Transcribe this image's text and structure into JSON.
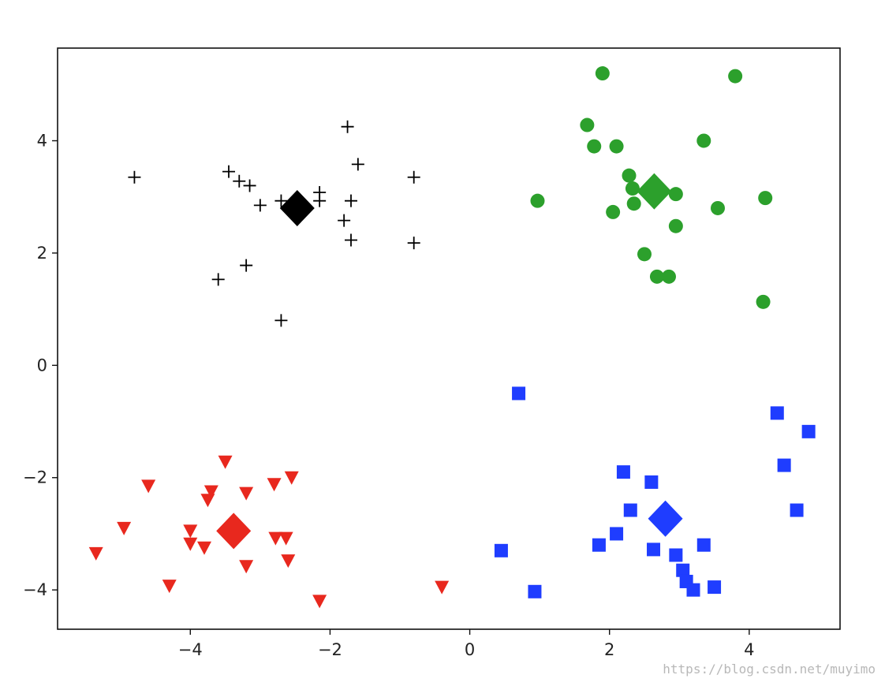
{
  "chart_data": {
    "type": "scatter",
    "xlim": [
      -5.9,
      5.3
    ],
    "ylim": [
      -4.7,
      5.65
    ],
    "xticks": [
      -4,
      -2,
      0,
      2,
      4
    ],
    "yticks": [
      -4,
      -2,
      0,
      2,
      4
    ],
    "xtick_labels": [
      "−4",
      "−2",
      "0",
      "2",
      "4"
    ],
    "ytick_labels": [
      "−4",
      "−2",
      "0",
      "2",
      "4"
    ],
    "grid": false,
    "series": [
      {
        "marker": "plus",
        "color": "#000000",
        "points": [
          [
            -4.8,
            3.35
          ],
          [
            -3.45,
            3.45
          ],
          [
            -3.3,
            3.28
          ],
          [
            -3.15,
            3.2
          ],
          [
            -3.0,
            2.85
          ],
          [
            -2.7,
            2.93
          ],
          [
            -2.15,
            3.08
          ],
          [
            -2.15,
            2.93
          ],
          [
            -1.75,
            4.25
          ],
          [
            -1.6,
            3.58
          ],
          [
            -1.7,
            2.93
          ],
          [
            -1.8,
            2.58
          ],
          [
            -1.7,
            2.23
          ],
          [
            -0.8,
            3.35
          ],
          [
            -0.8,
            2.18
          ],
          [
            -3.6,
            1.53
          ],
          [
            -3.2,
            1.78
          ],
          [
            -2.7,
            0.8
          ]
        ]
      },
      {
        "marker": "circle",
        "color": "#2ca02c",
        "points": [
          [
            1.9,
            5.2
          ],
          [
            3.8,
            5.15
          ],
          [
            1.68,
            4.28
          ],
          [
            1.78,
            3.9
          ],
          [
            2.1,
            3.9
          ],
          [
            3.35,
            4.0
          ],
          [
            2.28,
            3.38
          ],
          [
            2.33,
            3.15
          ],
          [
            2.95,
            3.05
          ],
          [
            0.97,
            2.93
          ],
          [
            2.05,
            2.73
          ],
          [
            2.35,
            2.88
          ],
          [
            3.55,
            2.8
          ],
          [
            4.23,
            2.98
          ],
          [
            2.95,
            2.48
          ],
          [
            2.5,
            1.98
          ],
          [
            2.68,
            1.58
          ],
          [
            2.85,
            1.58
          ],
          [
            4.2,
            1.13
          ]
        ]
      },
      {
        "marker": "square",
        "color": "#1f3dff",
        "points": [
          [
            0.7,
            -0.5
          ],
          [
            4.4,
            -0.85
          ],
          [
            4.85,
            -1.18
          ],
          [
            4.5,
            -1.78
          ],
          [
            4.68,
            -2.58
          ],
          [
            2.2,
            -1.9
          ],
          [
            2.6,
            -2.08
          ],
          [
            2.3,
            -2.58
          ],
          [
            1.85,
            -3.2
          ],
          [
            2.1,
            -3.0
          ],
          [
            2.63,
            -3.28
          ],
          [
            2.95,
            -3.38
          ],
          [
            3.35,
            -3.2
          ],
          [
            3.05,
            -3.65
          ],
          [
            3.1,
            -3.85
          ],
          [
            3.2,
            -4.0
          ],
          [
            3.5,
            -3.95
          ],
          [
            0.45,
            -3.3
          ],
          [
            0.93,
            -4.03
          ]
        ]
      },
      {
        "marker": "triangle-down",
        "color": "#e8281e",
        "points": [
          [
            -3.5,
            -1.72
          ],
          [
            -4.6,
            -2.15
          ],
          [
            -3.7,
            -2.25
          ],
          [
            -3.2,
            -2.28
          ],
          [
            -2.8,
            -2.12
          ],
          [
            -2.55,
            -2.0
          ],
          [
            -3.75,
            -2.4
          ],
          [
            -4.95,
            -2.9
          ],
          [
            -4.0,
            -2.95
          ],
          [
            -4.0,
            -3.18
          ],
          [
            -3.8,
            -3.25
          ],
          [
            -2.78,
            -3.08
          ],
          [
            -2.63,
            -3.08
          ],
          [
            -3.2,
            -3.58
          ],
          [
            -2.6,
            -3.48
          ],
          [
            -5.35,
            -3.35
          ],
          [
            -4.3,
            -3.93
          ],
          [
            -2.15,
            -4.2
          ],
          [
            -0.4,
            -3.95
          ]
        ]
      }
    ],
    "centroids": [
      {
        "marker": "diamond",
        "color": "#000000",
        "x": -2.47,
        "y": 2.8
      },
      {
        "marker": "diamond",
        "color": "#2ca02c",
        "x": 2.64,
        "y": 3.1
      },
      {
        "marker": "diamond",
        "color": "#1f3dff",
        "x": 2.8,
        "y": -2.73
      },
      {
        "marker": "diamond",
        "color": "#e8281e",
        "x": -3.38,
        "y": -2.95
      }
    ]
  },
  "watermark": "https://blog.csdn.net/muyimo"
}
